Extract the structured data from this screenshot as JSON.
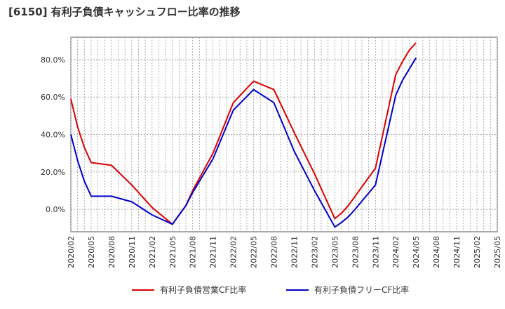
{
  "title": "[6150]  有利子負債キャッシュフロー比率の推移",
  "chart_data": {
    "type": "line",
    "x": [
      "2020/02",
      "2020/05",
      "2020/08",
      "2020/11",
      "2021/02",
      "2021/05",
      "2021/08",
      "2021/11",
      "2022/02",
      "2022/05",
      "2022/08",
      "2022/11",
      "2023/02",
      "2023/05",
      "2023/08",
      "2023/11",
      "2024/02",
      "2024/05",
      "2024/08",
      "2024/11",
      "2025/02",
      "2025/05"
    ],
    "ylim": [
      -12,
      92
    ],
    "yticks": [
      0,
      20,
      40,
      60,
      80
    ],
    "ytick_labels": [
      "0.0%",
      "20.0%",
      "40.0%",
      "60.0%",
      "80.0%"
    ],
    "grid": true,
    "legend_position": "bottom",
    "series": [
      {
        "name": "有利子負債営業CF比率",
        "color": "#dd0000",
        "points": [
          [
            "2020/02",
            59
          ],
          [
            "2020/03",
            44
          ],
          [
            "2020/04",
            33
          ],
          [
            "2020/05",
            25
          ],
          [
            "2020/08",
            23.5
          ],
          [
            "2020/11",
            13
          ],
          [
            "2021/02",
            1
          ],
          [
            "2021/05",
            -8
          ],
          [
            "2021/06",
            -3
          ],
          [
            "2021/07",
            2
          ],
          [
            "2021/08",
            10
          ],
          [
            "2021/11",
            30
          ],
          [
            "2022/02",
            57
          ],
          [
            "2022/05",
            68.5
          ],
          [
            "2022/08",
            64
          ],
          [
            "2022/11",
            41
          ],
          [
            "2023/02",
            19
          ],
          [
            "2023/05",
            -5
          ],
          [
            "2023/06",
            -2
          ],
          [
            "2023/07",
            2
          ],
          [
            "2023/08",
            7
          ],
          [
            "2023/11",
            22
          ],
          [
            "2024/02",
            72
          ],
          [
            "2024/03",
            79
          ],
          [
            "2024/04",
            85
          ],
          [
            "2024/05",
            89
          ]
        ]
      },
      {
        "name": "有利子負債フリーCF比率",
        "color": "#0000cc",
        "points": [
          [
            "2020/02",
            40
          ],
          [
            "2020/03",
            26
          ],
          [
            "2020/04",
            15
          ],
          [
            "2020/05",
            7
          ],
          [
            "2020/08",
            7
          ],
          [
            "2020/11",
            4
          ],
          [
            "2021/02",
            -3
          ],
          [
            "2021/05",
            -8
          ],
          [
            "2021/06",
            -3
          ],
          [
            "2021/07",
            2
          ],
          [
            "2021/08",
            9
          ],
          [
            "2021/11",
            27
          ],
          [
            "2022/02",
            53
          ],
          [
            "2022/05",
            64
          ],
          [
            "2022/08",
            57
          ],
          [
            "2022/11",
            31
          ],
          [
            "2023/02",
            10
          ],
          [
            "2023/05",
            -9.5
          ],
          [
            "2023/06",
            -7
          ],
          [
            "2023/07",
            -4
          ],
          [
            "2023/08",
            0
          ],
          [
            "2023/11",
            13
          ],
          [
            "2024/02",
            61
          ],
          [
            "2024/03",
            69
          ],
          [
            "2024/04",
            75
          ],
          [
            "2024/05",
            81
          ]
        ]
      }
    ]
  }
}
